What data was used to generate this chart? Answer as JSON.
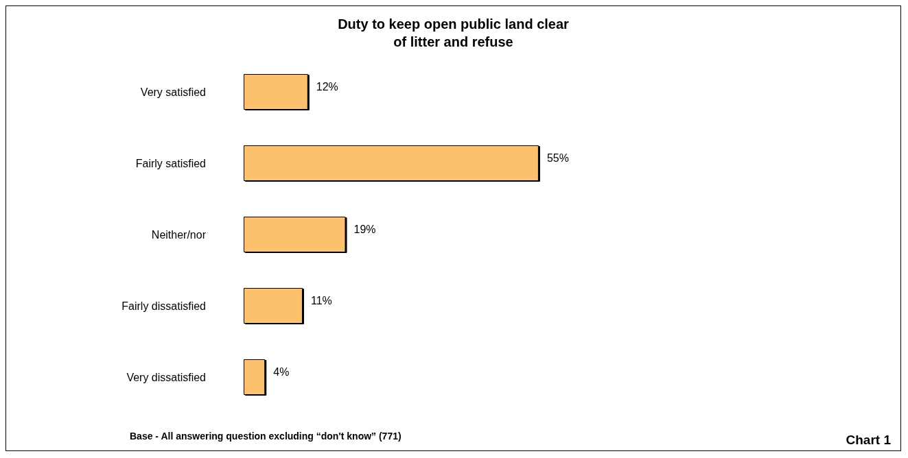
{
  "chart_data": {
    "type": "bar",
    "orientation": "horizontal",
    "title": "Duty to keep open public land clear\nof litter and refuse",
    "categories": [
      "Very satisfied",
      "Fairly satisfied",
      "Neither/nor",
      "Fairly dissatisfied",
      "Very dissatisfied"
    ],
    "values": [
      12,
      55,
      19,
      11,
      4
    ],
    "value_labels": [
      "12%",
      "55%",
      "19%",
      "11%",
      "4%"
    ],
    "color": "#fdc06c",
    "tick_labels": "y",
    "annotations": [
      "Base - All answering question excluding “don't know” (771)",
      "Chart 1"
    ]
  }
}
